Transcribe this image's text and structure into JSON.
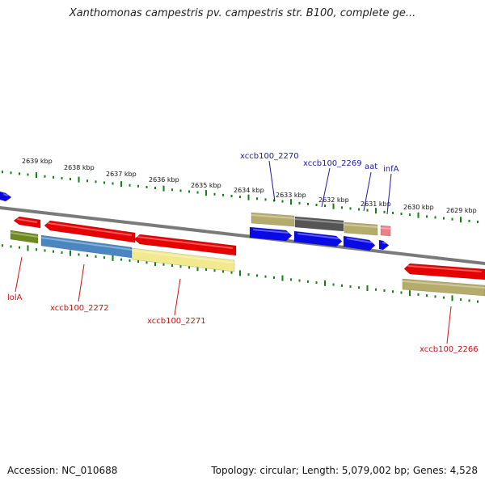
{
  "title": "Xanthomonas campestris pv. campestris str. B100, complete ge...",
  "footer": {
    "accession": "Accession: NC_010688",
    "stats": "Topology: circular; Length: 5,079,002 bp; Genes: 4,528"
  },
  "colors": {
    "top_strand_label": "#1a1aa6",
    "bottom_strand_label": "#cc1111",
    "tick": "#138013",
    "backbone": "#808080"
  },
  "top_ticks": [
    "2639 kbp",
    "2638 kbp",
    "2637 kbp",
    "2636 kbp",
    "2635 kbp",
    "2634 kbp",
    "2633 kbp",
    "2632 kbp",
    "2631 kbp",
    "2630 kbp",
    "2629 kbp"
  ],
  "top_labels": [
    "xccb100_2270",
    "xccb100_2269",
    "aat",
    "infA"
  ],
  "bottom_labels": [
    "lolA",
    "xccb100_2272",
    "xccb100_2271",
    "xccb100_2266"
  ],
  "gene_colors": {
    "red": "#e60000",
    "blue": "#0a0ae6",
    "khaki": "#b5ab6a",
    "olive": "#6e8a1e",
    "steel": "#4a86c0",
    "pale_yellow": "#f2e98f",
    "dark_grey": "#555555",
    "pink": "#ee7f86"
  }
}
